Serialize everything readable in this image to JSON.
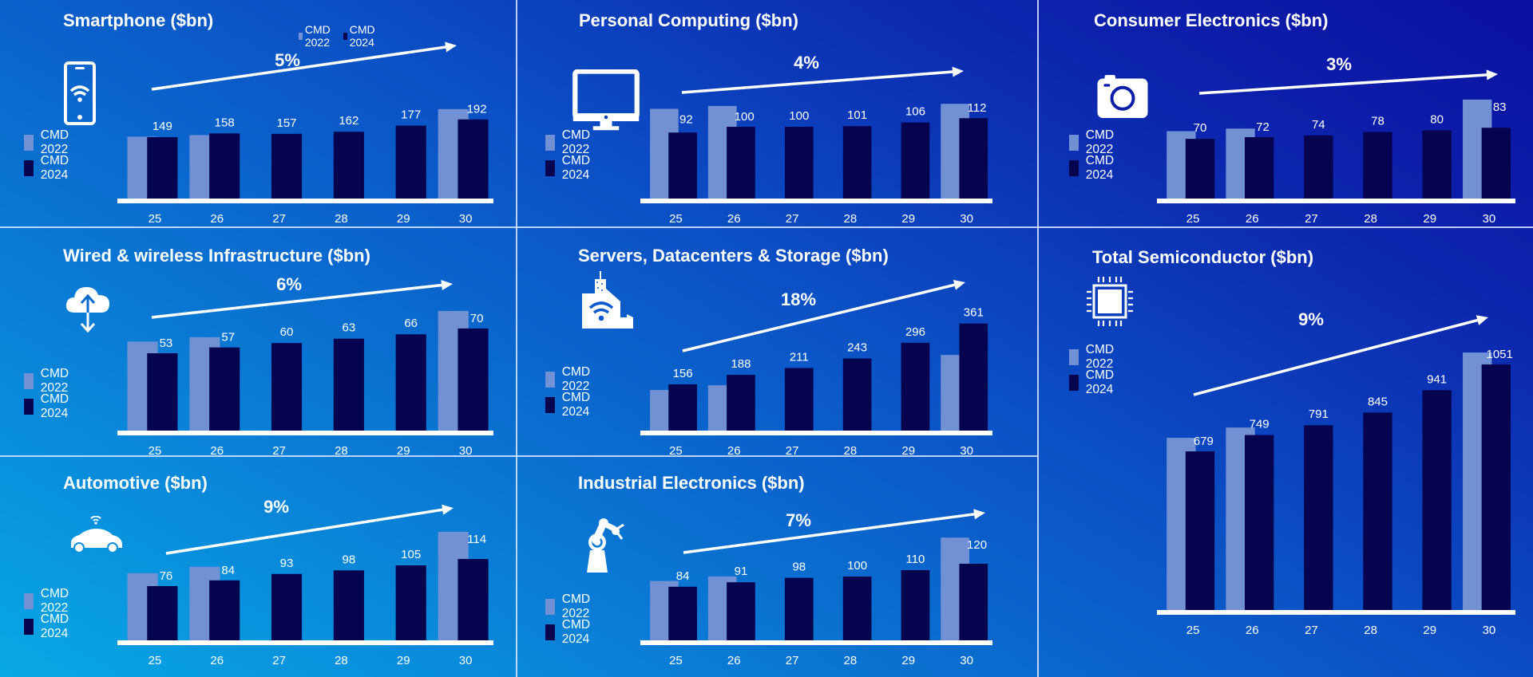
{
  "colors": {
    "cmd2022": "#7291d4",
    "cmd2024": "#07044f",
    "axis": "#ffffff",
    "text": "#ffffff"
  },
  "legend_labels": [
    "CMD 2022",
    "CMD 2024"
  ],
  "chart_data": [
    {
      "id": "smartphone",
      "type": "bar",
      "title": "Smartphone ($bn)",
      "icon": "smartphone-wifi-icon",
      "cagr": "5%",
      "categories": [
        "25",
        "26",
        "27",
        "28",
        "29",
        "30"
      ],
      "series": [
        {
          "name": "CMD 2022",
          "values": [
            150,
            154,
            null,
            null,
            null,
            217
          ]
        },
        {
          "name": "CMD 2024",
          "values": [
            149,
            158,
            157,
            162,
            177,
            192
          ]
        }
      ],
      "data_labels": [
        "149",
        "158",
        "157",
        "162",
        "177",
        "192"
      ],
      "top_legend": true,
      "ylim": [
        0,
        230
      ]
    },
    {
      "id": "personal-computing",
      "type": "bar",
      "title": "Personal Computing ($bn)",
      "icon": "monitor-icon",
      "cagr": "4%",
      "categories": [
        "25",
        "26",
        "27",
        "28",
        "29",
        "30"
      ],
      "series": [
        {
          "name": "CMD 2022",
          "values": [
            125,
            129,
            null,
            null,
            null,
            132
          ]
        },
        {
          "name": "CMD 2024",
          "values": [
            92,
            100,
            100,
            101,
            106,
            112
          ]
        }
      ],
      "data_labels": [
        "92",
        "100",
        "100",
        "101",
        "106",
        "112"
      ],
      "ylim": [
        0,
        140
      ]
    },
    {
      "id": "consumer-electronics",
      "type": "bar",
      "title": "Consumer Electronics ($bn)",
      "icon": "camera-icon",
      "cagr": "3%",
      "categories": [
        "25",
        "26",
        "27",
        "28",
        "29",
        "30"
      ],
      "series": [
        {
          "name": "CMD 2022",
          "values": [
            79,
            82,
            null,
            null,
            null,
            116
          ]
        },
        {
          "name": "CMD 2024",
          "values": [
            70,
            72,
            74,
            78,
            80,
            83
          ]
        }
      ],
      "data_labels": [
        "70",
        "72",
        "74",
        "78",
        "80",
        "83"
      ],
      "ylim": [
        0,
        125
      ]
    },
    {
      "id": "wired-wireless-infrastructure",
      "type": "bar",
      "title": "Wired & wireless Infrastructure ($bn)",
      "icon": "cloud-transfer-icon",
      "cagr": "6%",
      "categories": [
        "25",
        "26",
        "27",
        "28",
        "29",
        "30"
      ],
      "series": [
        {
          "name": "CMD 2022",
          "values": [
            61,
            64,
            null,
            null,
            null,
            82
          ]
        },
        {
          "name": "CMD 2024",
          "values": [
            53,
            57,
            60,
            63,
            66,
            70
          ]
        }
      ],
      "data_labels": [
        "53",
        "57",
        "60",
        "63",
        "66",
        "70"
      ],
      "ylim": [
        0,
        90
      ]
    },
    {
      "id": "servers-datacenters-storage",
      "type": "bar",
      "title": "Servers, Datacenters & Storage ($bn)",
      "icon": "datacenter-building-icon",
      "cagr": "18%",
      "categories": [
        "25",
        "26",
        "27",
        "28",
        "29",
        "30"
      ],
      "series": [
        {
          "name": "CMD 2022",
          "values": [
            137,
            153,
            null,
            null,
            null,
            255
          ]
        },
        {
          "name": "CMD 2024",
          "values": [
            156,
            188,
            211,
            243,
            296,
            361
          ]
        }
      ],
      "data_labels": [
        "156",
        "188",
        "211",
        "243",
        "296",
        "361"
      ],
      "ylim": [
        0,
        400
      ]
    },
    {
      "id": "automotive",
      "type": "bar",
      "title": "Automotive ($bn)",
      "icon": "connected-car-icon",
      "cagr": "9%",
      "categories": [
        "25",
        "26",
        "27",
        "28",
        "29",
        "30"
      ],
      "series": [
        {
          "name": "CMD 2022",
          "values": [
            94,
            103,
            null,
            null,
            null,
            152
          ]
        },
        {
          "name": "CMD 2024",
          "values": [
            76,
            84,
            93,
            98,
            105,
            114
          ]
        }
      ],
      "data_labels": [
        "76",
        "84",
        "93",
        "98",
        "105",
        "114"
      ],
      "ylim": [
        0,
        165
      ]
    },
    {
      "id": "industrial-electronics",
      "type": "bar",
      "title": "Industrial Electronics ($bn)",
      "icon": "robot-arm-icon",
      "cagr": "7%",
      "categories": [
        "25",
        "26",
        "27",
        "28",
        "29",
        "30"
      ],
      "series": [
        {
          "name": "CMD 2022",
          "values": [
            93,
            100,
            null,
            null,
            null,
            161
          ]
        },
        {
          "name": "CMD 2024",
          "values": [
            84,
            91,
            98,
            100,
            110,
            120
          ]
        }
      ],
      "data_labels": [
        "84",
        "91",
        "98",
        "100",
        "110",
        "120"
      ],
      "ylim": [
        0,
        175
      ]
    },
    {
      "id": "total-semiconductor",
      "type": "bar",
      "title": "Total Semiconductor ($bn)",
      "icon": "chip-icon",
      "cagr": "9%",
      "categories": [
        "25",
        "26",
        "27",
        "28",
        "29",
        "30"
      ],
      "series": [
        {
          "name": "CMD 2022",
          "values": [
            737,
            781,
            null,
            null,
            null,
            1102
          ]
        },
        {
          "name": "CMD 2024",
          "values": [
            679,
            749,
            791,
            845,
            941,
            1051
          ]
        }
      ],
      "data_labels": [
        "679",
        "749",
        "791",
        "845",
        "941",
        "1051"
      ],
      "ylim": [
        0,
        1150
      ]
    }
  ]
}
